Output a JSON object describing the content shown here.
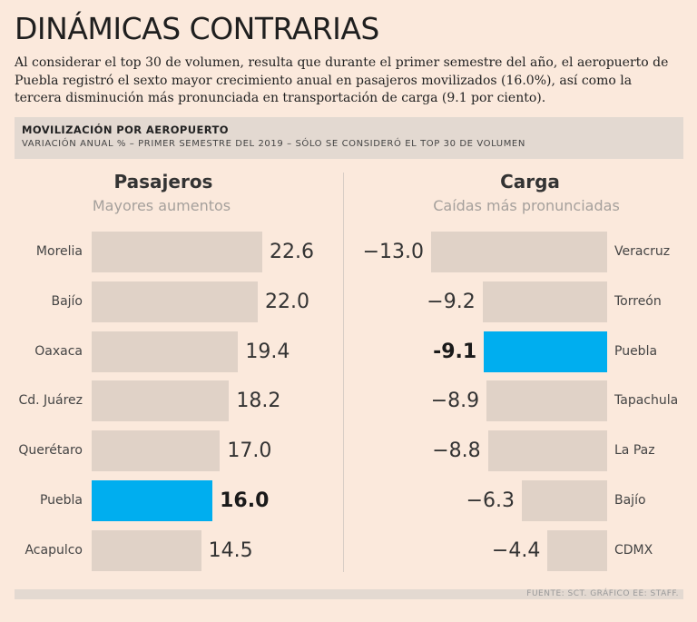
{
  "header": {
    "title": "DINÁMICAS CONTRARIAS",
    "intro": "Al considerar el top 30 de volumen, resulta que durante el primer semestre del año, el aeropuerto de Puebla registró el sexto mayor crecimiento anual en pasajeros movilizados (16.0%), así como la tercera disminución más pronunciada en transportación de carga (9.1 por ciento)."
  },
  "banner": {
    "title": "MOVILIZACIÓN POR AEROPUERTO",
    "subtitle": "VARIACIÓN ANUAL % – PRIMER SEMESTRE DEL 2019 – SÓLO SE CONSIDERÓ EL TOP 30 DE VOLUMEN"
  },
  "footer": {
    "source": "FUENTE: SCT. GRÁFICO EE: STAFF."
  },
  "colors": {
    "highlight": "#00aeef",
    "bar": "#e0d2c7",
    "background": "#fbe9dc"
  },
  "chart_data": [
    {
      "type": "bar",
      "orientation": "horizontal",
      "title": "Pasajeros",
      "subtitle": "Mayores aumentos",
      "categories": [
        "Morelia",
        "Bajío",
        "Oaxaca",
        "Cd. Juárez",
        "Querétaro",
        "Puebla",
        "Acapulco"
      ],
      "values": [
        22.6,
        22.0,
        19.4,
        18.2,
        17.0,
        16.0,
        14.5
      ],
      "labels": [
        "22.6",
        "22.0",
        "19.4",
        "18.2",
        "17.0",
        "16.0",
        "14.5"
      ],
      "highlight": "Puebla",
      "xlim": [
        0,
        22.6
      ]
    },
    {
      "type": "bar",
      "orientation": "horizontal",
      "title": "Carga",
      "subtitle": "Caídas más pronunciadas",
      "categories": [
        "Veracruz",
        "Torreón",
        "Puebla",
        "Tapachula",
        "La Paz",
        "Bajío",
        "CDMX"
      ],
      "values": [
        -13.0,
        -9.2,
        -9.1,
        -8.9,
        -8.8,
        -6.3,
        -4.4
      ],
      "labels": [
        "−13.0",
        "−9.2",
        "-9.1",
        "−8.9",
        "−8.8",
        "−6.3",
        "−4.4"
      ],
      "highlight": "Puebla",
      "xlim": [
        -13.0,
        0
      ]
    }
  ]
}
